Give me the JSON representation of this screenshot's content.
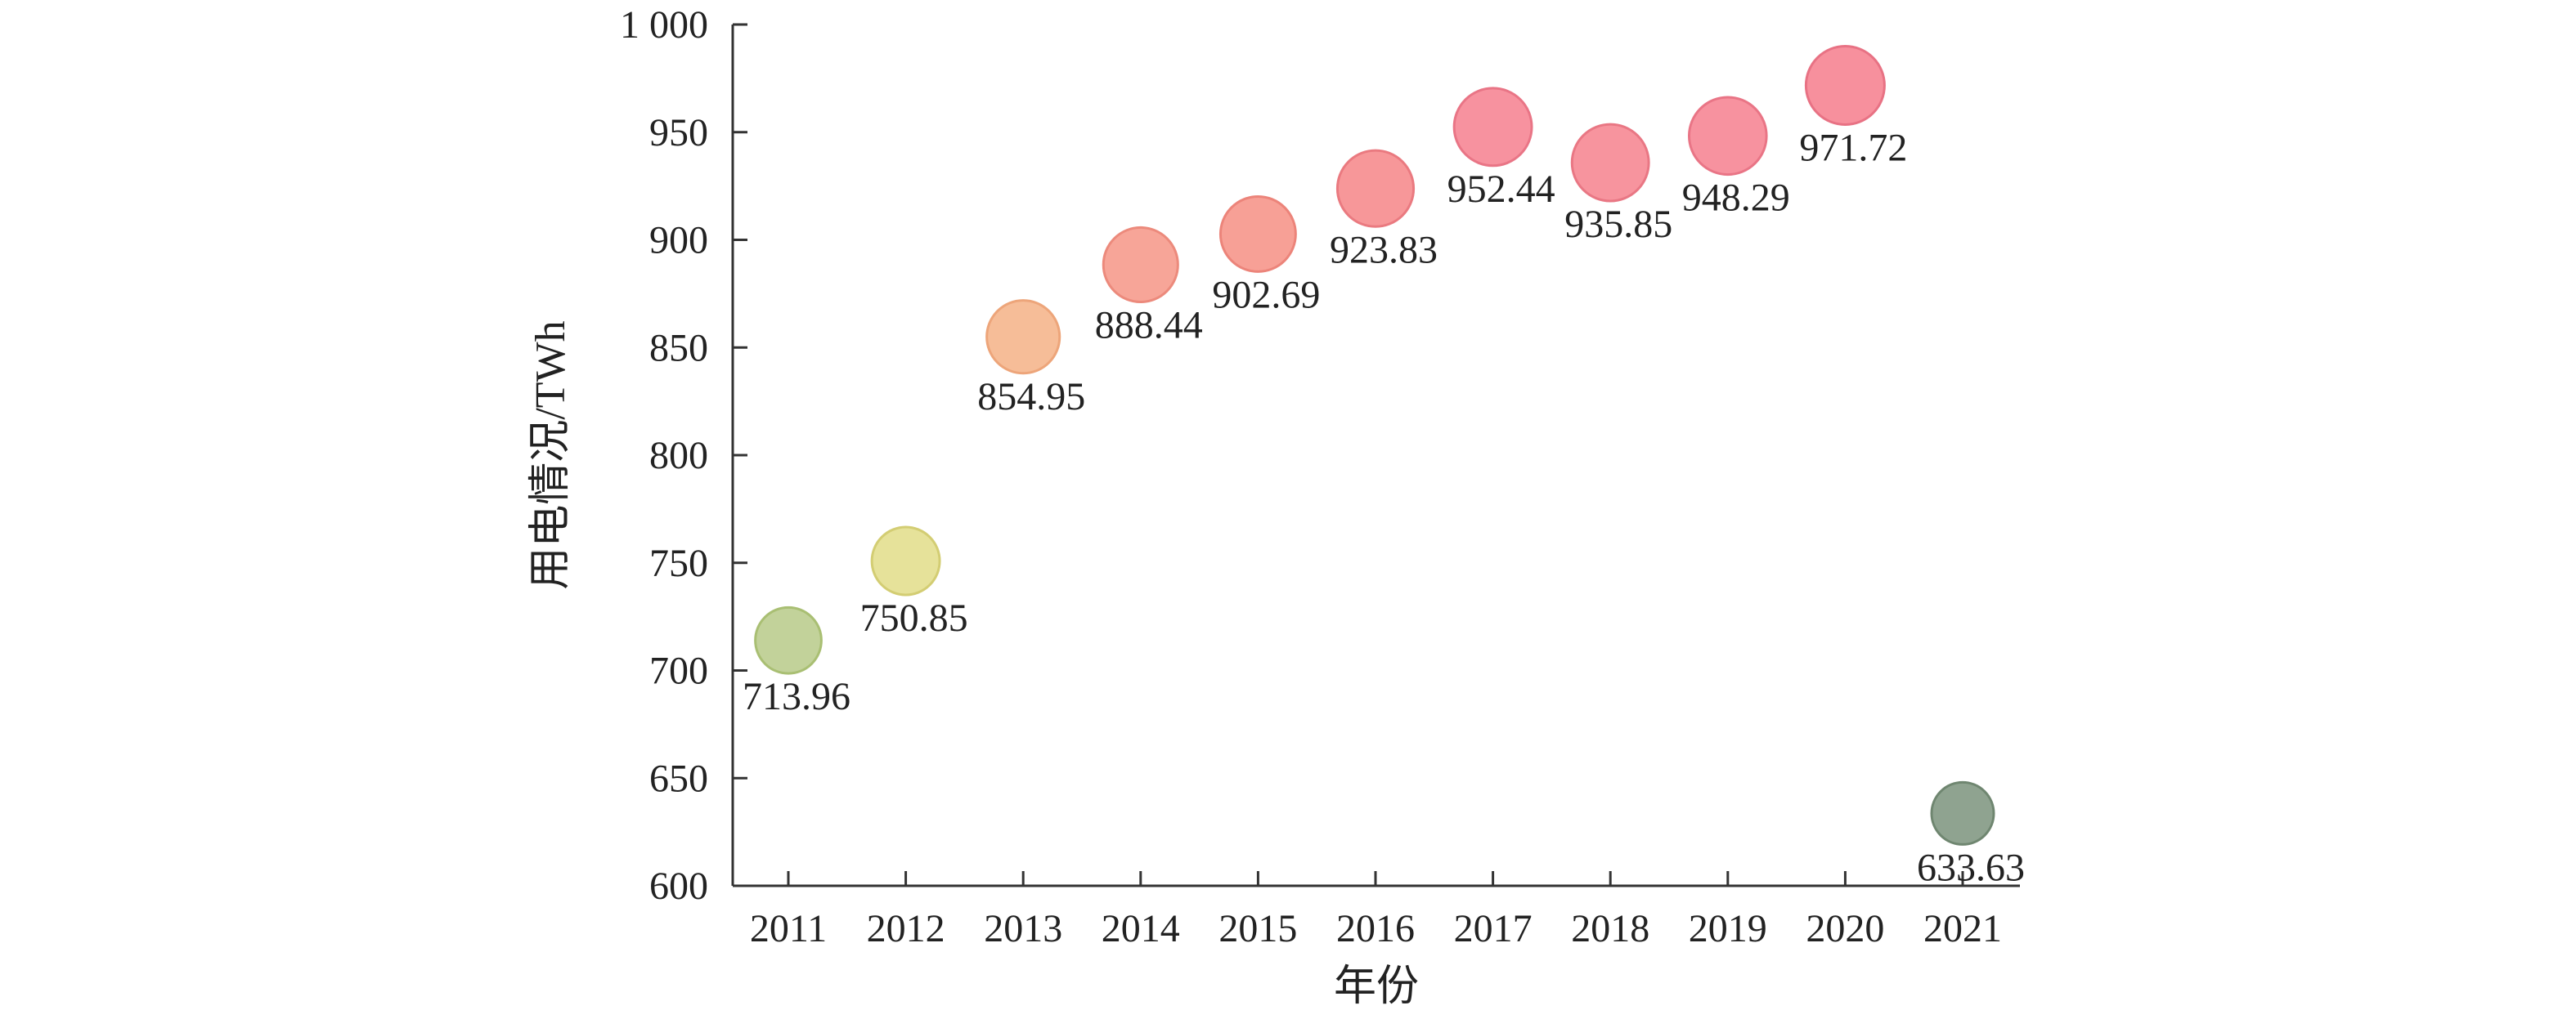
{
  "chart_data": {
    "type": "scatter",
    "title": "",
    "xlabel": "年份",
    "ylabel": "用电情况/TWh",
    "ylim": [
      600,
      1000
    ],
    "y_ticks": [
      600,
      650,
      700,
      750,
      800,
      850,
      900,
      950,
      1000
    ],
    "y_tick_labels": [
      "600",
      "650",
      "700",
      "750",
      "800",
      "850",
      "900",
      "950",
      "1 000"
    ],
    "grid": false,
    "legend": "none",
    "points": [
      {
        "x": "2011",
        "y": 713.96,
        "label": "713.96",
        "color": "#c2d29a",
        "stroke": "#a9bf73"
      },
      {
        "x": "2012",
        "y": 750.85,
        "label": "750.85",
        "color": "#e6e29a",
        "stroke": "#d3cd73"
      },
      {
        "x": "2013",
        "y": 854.95,
        "label": "854.95",
        "color": "#f6bd98",
        "stroke": "#eda57a"
      },
      {
        "x": "2014",
        "y": 888.44,
        "label": "888.44",
        "color": "#f7a598",
        "stroke": "#ec8a7c"
      },
      {
        "x": "2015",
        "y": 902.69,
        "label": "902.69",
        "color": "#f7a096",
        "stroke": "#ec847a"
      },
      {
        "x": "2016",
        "y": 923.83,
        "label": "923.83",
        "color": "#f79799",
        "stroke": "#ea7a80"
      },
      {
        "x": "2017",
        "y": 952.44,
        "label": "952.44",
        "color": "#f7929f",
        "stroke": "#e97586"
      },
      {
        "x": "2018",
        "y": 935.85,
        "label": "935.85",
        "color": "#f7949e",
        "stroke": "#e97784"
      },
      {
        "x": "2019",
        "y": 948.29,
        "label": "948.29",
        "color": "#f7929f",
        "stroke": "#e97586"
      },
      {
        "x": "2020",
        "y": 971.72,
        "label": "971.72",
        "color": "#f7909d",
        "stroke": "#e87284"
      },
      {
        "x": "2021",
        "y": 633.63,
        "label": "633.63",
        "color": "#8fa390",
        "stroke": "#6f8670"
      }
    ]
  }
}
